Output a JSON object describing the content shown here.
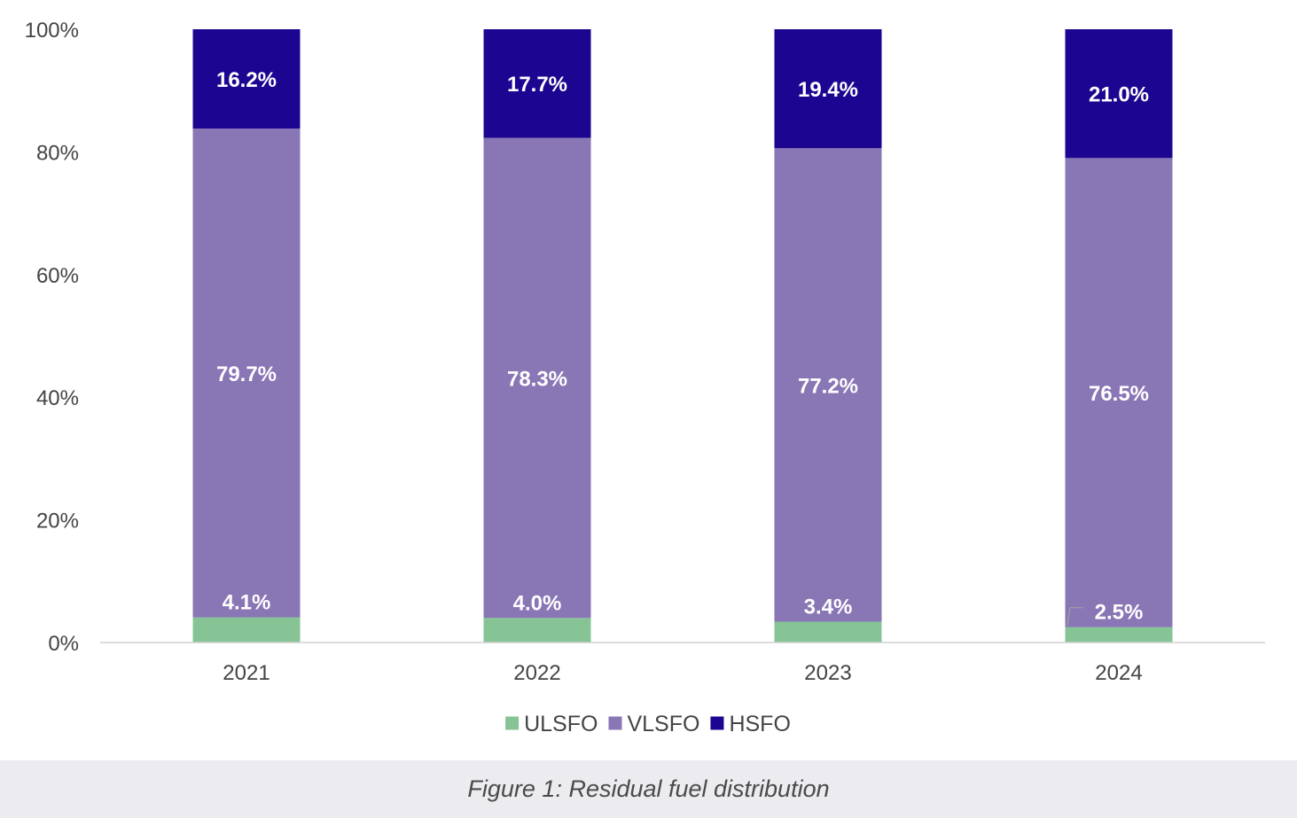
{
  "chart_data": {
    "type": "bar",
    "stacked": true,
    "categories": [
      "2021",
      "2022",
      "2023",
      "2024"
    ],
    "series": [
      {
        "name": "ULSFO",
        "values": [
          4.1,
          4.0,
          3.4,
          2.5
        ],
        "labels": [
          "4.1%",
          "4.0%",
          "3.4%",
          "2.5%"
        ],
        "color": "#86c495"
      },
      {
        "name": "VLSFO",
        "values": [
          79.7,
          78.3,
          77.2,
          76.5
        ],
        "labels": [
          "79.7%",
          "78.3%",
          "77.2%",
          "76.5%"
        ],
        "color": "#8876b5"
      },
      {
        "name": "HSFO",
        "values": [
          16.2,
          17.7,
          19.4,
          21.0
        ],
        "labels": [
          "16.2%",
          "17.7%",
          "19.4%",
          "21.0%"
        ],
        "color": "#1c0590"
      }
    ],
    "ylim": [
      0,
      100
    ],
    "yticks": [
      "0%",
      "20%",
      "40%",
      "60%",
      "80%",
      "100%"
    ],
    "ytick_values": [
      0,
      20,
      40,
      60,
      80,
      100
    ],
    "grid": false,
    "legend_position": "bottom",
    "title": "",
    "xlabel": "",
    "ylabel": ""
  },
  "caption": "Figure 1: Residual fuel distribution"
}
